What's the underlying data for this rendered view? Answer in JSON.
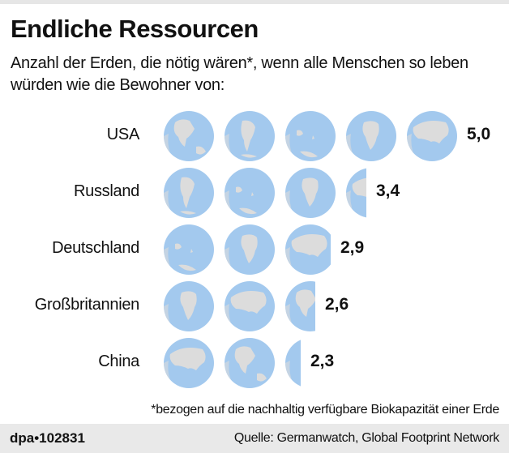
{
  "header": {
    "title": "Endliche Ressourcen",
    "subtitle": "Anzahl der Erden, die nötig wären*, wenn alle Menschen so leben würden wie die Bewohner von:"
  },
  "rows": [
    {
      "label": "USA",
      "value_label": "5,0"
    },
    {
      "label": "Russland",
      "value_label": "3,4"
    },
    {
      "label": "Deutschland",
      "value_label": "2,9"
    },
    {
      "label": "Großbritannien",
      "value_label": "2,6"
    },
    {
      "label": "China",
      "value_label": "2,3"
    }
  ],
  "footnote": "*bezogen auf die nachhaltig verfügbare Biokapazität einer Erde",
  "footer": {
    "id": "dpa•102831",
    "source": "Quelle: Germanwatch, Global Footprint Network"
  },
  "colors": {
    "ocean": "#a3c9ee",
    "land": "#dcdcdc",
    "footer_bg": "#e9e9e9"
  },
  "chart_data": {
    "type": "bar",
    "subtype": "pictogram",
    "title": "Endliche Ressourcen",
    "subtitle": "Anzahl der Erden, die nötig wären*, wenn alle Menschen so leben würden wie die Bewohner von:",
    "categories": [
      "USA",
      "Russland",
      "Deutschland",
      "Großbritannien",
      "China"
    ],
    "values": [
      5.0,
      3.4,
      2.9,
      2.6,
      2.3
    ],
    "value_labels": [
      "5,0",
      "3,4",
      "2,9",
      "2,6",
      "2,3"
    ],
    "unit": "Erden",
    "icon": "globe",
    "orientation": "horizontal",
    "xlabel": "",
    "ylabel": "",
    "footnote": "*bezogen auf die nachhaltig verfügbare Biokapazität einer Erde",
    "source": "Quelle: Germanwatch, Global Footprint Network",
    "grid": false,
    "legend": null
  }
}
